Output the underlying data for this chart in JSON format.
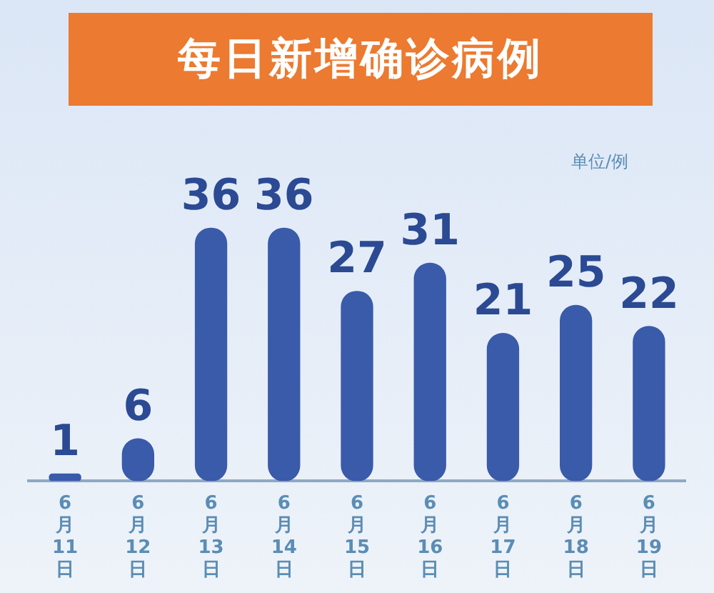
{
  "chart_data": {
    "type": "bar",
    "title": "每日新增确诊病例",
    "annotations": [
      "单位/例"
    ],
    "categories": [
      "6月11日",
      "6月12日",
      "6月13日",
      "6月14日",
      "6月15日",
      "6月16日",
      "6月17日",
      "6月18日",
      "6月19日"
    ],
    "values": [
      1,
      6,
      36,
      36,
      27,
      31,
      21,
      25,
      22
    ],
    "color": "#3a5aaa",
    "data_labels": true,
    "grid": false,
    "legend": false
  }
}
